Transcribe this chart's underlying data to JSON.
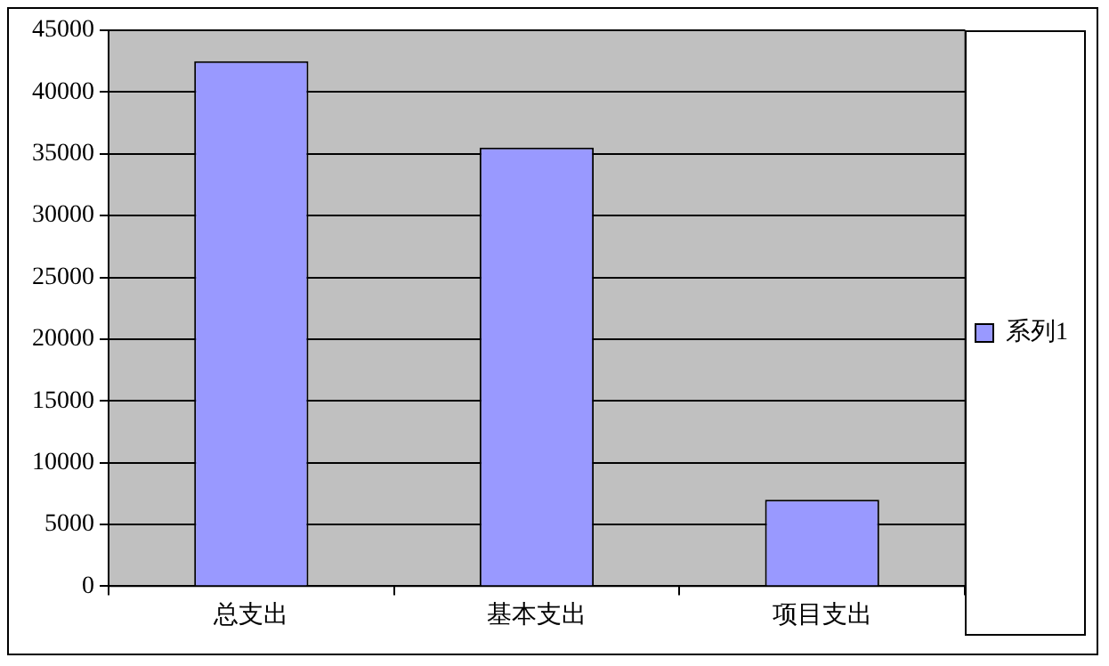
{
  "chart_data": {
    "type": "bar",
    "categories": [
      "总支出",
      "基本支出",
      "项目支出"
    ],
    "series": [
      {
        "name": "系列1",
        "color": "#9999ff",
        "values": [
          42500,
          35500,
          7000
        ]
      }
    ],
    "ylim": [
      0,
      45000
    ],
    "yticks": [
      0,
      5000,
      10000,
      15000,
      20000,
      25000,
      30000,
      35000,
      40000,
      45000
    ],
    "grid": "y",
    "legend": "right"
  }
}
